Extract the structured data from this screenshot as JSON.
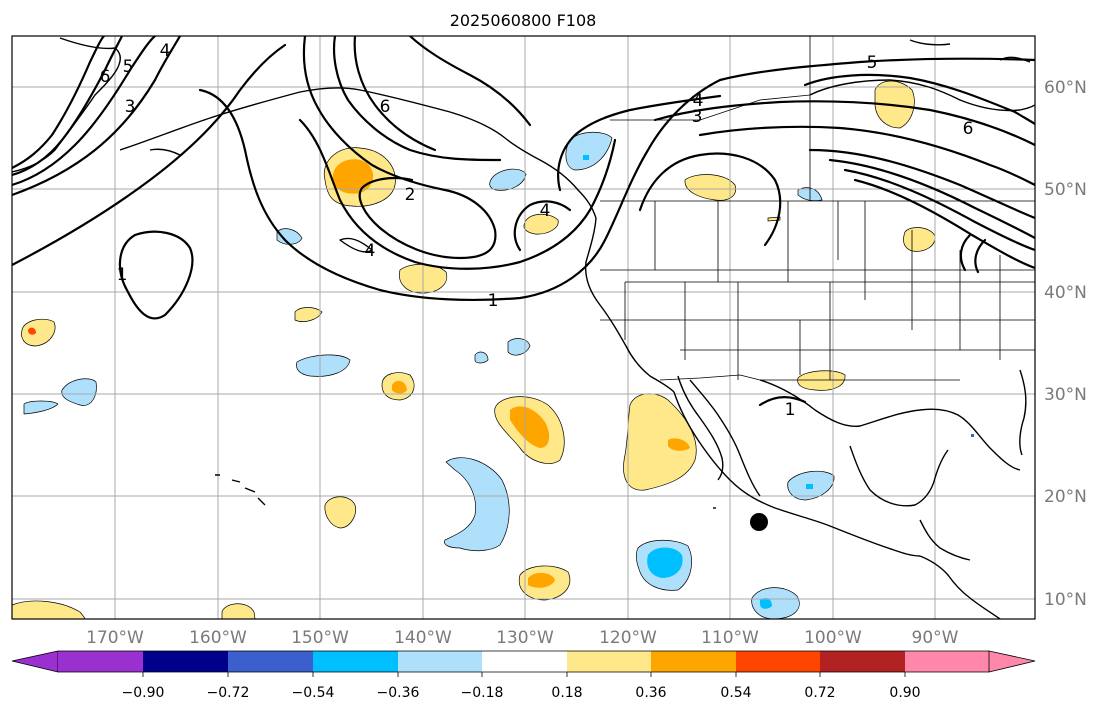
{
  "title": "2025060800 F108",
  "map": {
    "lon_labels": [
      "170°W",
      "160°W",
      "150°W",
      "140°W",
      "130°W",
      "120°W",
      "110°W",
      "100°W",
      "90°W"
    ],
    "lat_labels": [
      "60°N",
      "50°N",
      "40°N",
      "30°N",
      "20°N",
      "10°N"
    ],
    "contour_labels": [
      "6",
      "5",
      "4",
      "3",
      "6",
      "2",
      "1",
      "4",
      "4",
      "3",
      "5",
      "6",
      "1",
      "1",
      "4"
    ]
  },
  "colorbar": {
    "tick_labels": [
      "−0.90",
      "−0.72",
      "−0.54",
      "−0.36",
      "−0.18",
      "0.18",
      "0.36",
      "0.54",
      "0.72",
      "0.90"
    ],
    "colors": {
      "under": "#9b30d0",
      "c_m090": "#00008b",
      "c_m072": "#3b5fcd",
      "c_m054": "#00bfff",
      "c_m036": "#afe0fb",
      "c_neutral": "#ffffff",
      "c_p018": "#ffe88a",
      "c_p036": "#ffa500",
      "c_p054": "#ff4500",
      "c_p072": "#b22222",
      "over": "#ff88aa"
    }
  }
}
